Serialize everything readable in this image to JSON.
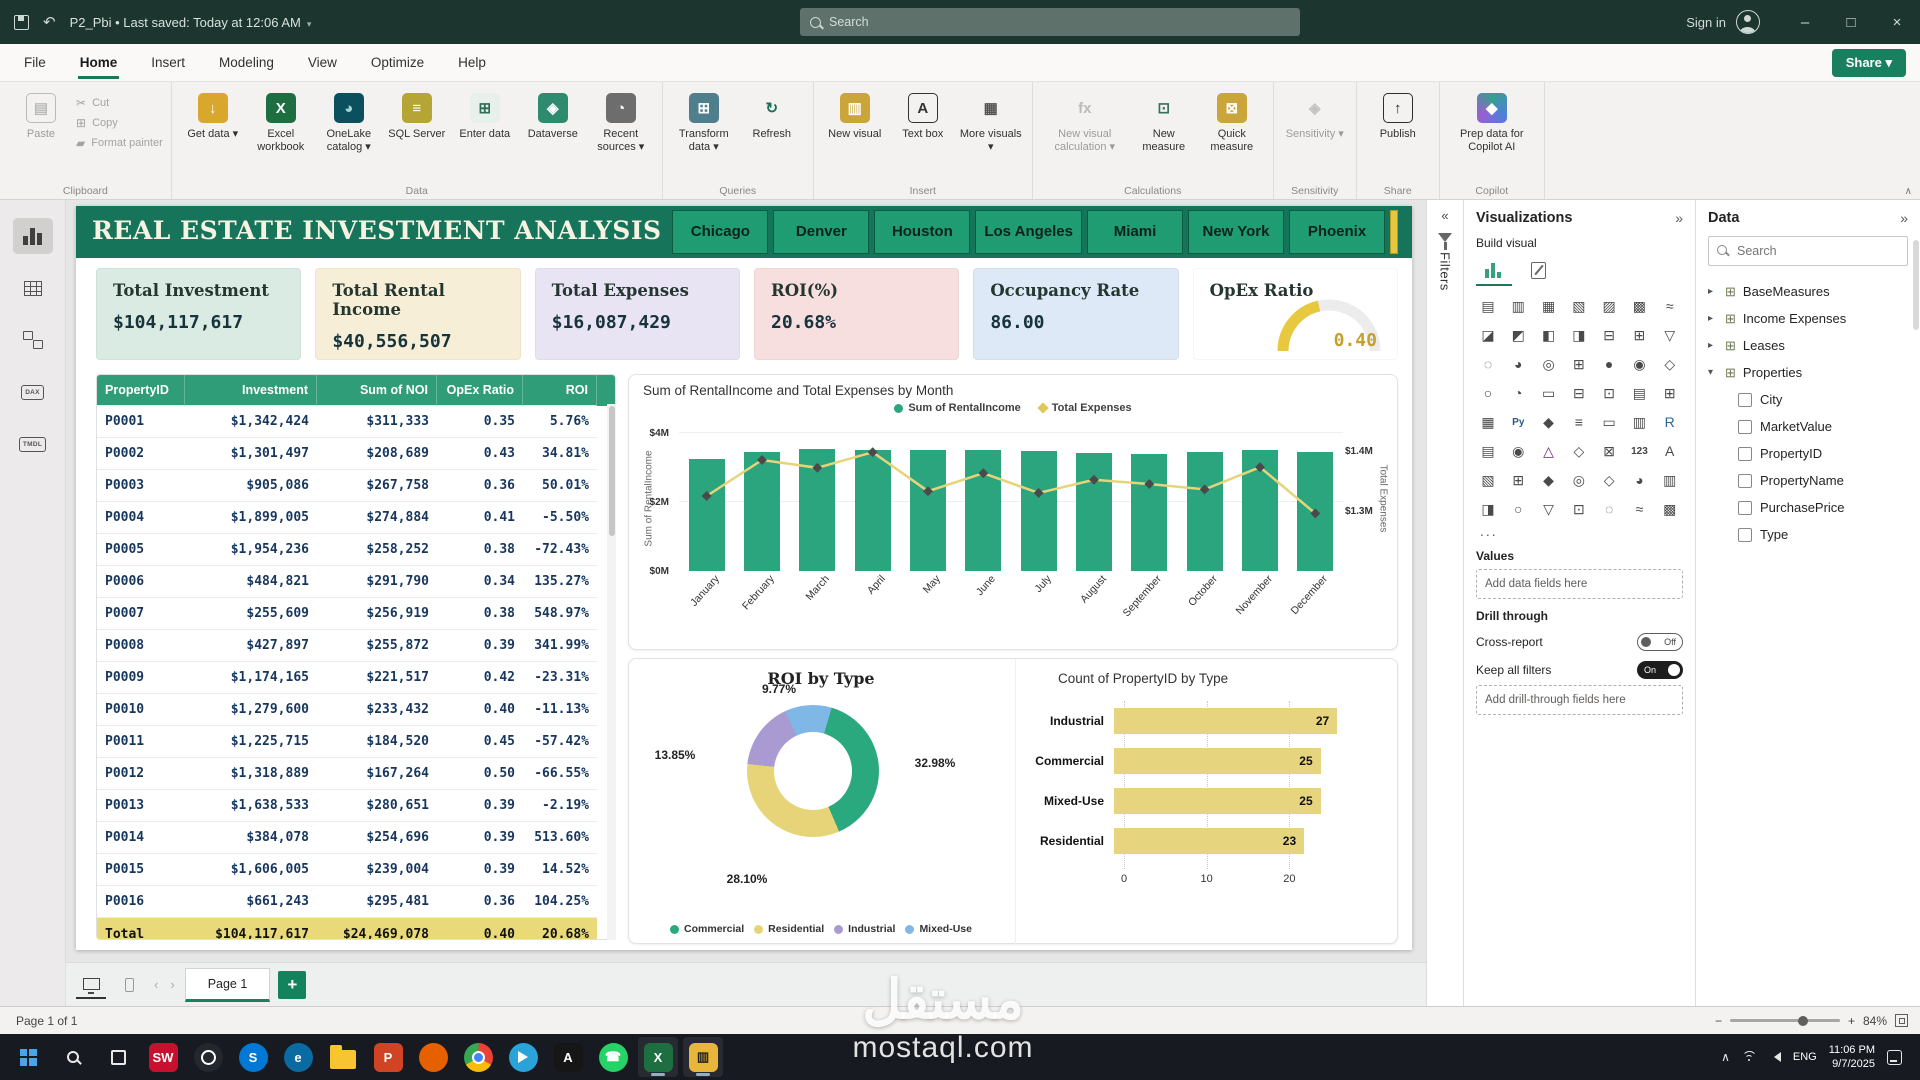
{
  "window": {
    "title": "P2_Pbi • Last saved: Today at 12:06 AM",
    "search_placeholder": "Search",
    "sign_in_label": "Sign in"
  },
  "menubar": {
    "tabs": [
      "File",
      "Home",
      "Insert",
      "Modeling",
      "View",
      "Optimize",
      "Help"
    ],
    "active_tab": "Home",
    "share_label": "Share"
  },
  "ribbon": {
    "clipboard": {
      "label": "Clipboard",
      "paste": "Paste",
      "cut": "Cut",
      "copy": "Copy",
      "format_painter": "Format painter"
    },
    "groups": [
      {
        "label": "Data",
        "items": [
          {
            "name": "get-data",
            "label": "Get data",
            "glyph": "↓",
            "bg": "#d9a62e",
            "fg": "#ffffff",
            "dd": true
          },
          {
            "name": "excel-workbook",
            "label": "Excel workbook",
            "glyph": "X",
            "bg": "#1d6f42",
            "fg": "#ffffff"
          },
          {
            "name": "onelake-catalog",
            "label": "OneLake catalog",
            "glyph": "◕",
            "bg": "#0c4f5e",
            "fg": "#9fd8cf",
            "dd": true
          },
          {
            "name": "sql-server",
            "label": "SQL Server",
            "glyph": "≡",
            "bg": "#b5a535",
            "fg": "#ffffff"
          },
          {
            "name": "enter-data",
            "label": "Enter data",
            "glyph": "⊞",
            "bg": "#e8f0ec",
            "fg": "#2e6e52"
          },
          {
            "name": "dataverse",
            "label": "Dataverse",
            "glyph": "◈",
            "bg": "#2e8b6e",
            "fg": "#ffffff"
          },
          {
            "name": "recent-sources",
            "label": "Recent sources",
            "glyph": "◔",
            "bg": "#6d6d6d",
            "fg": "#ffffff",
            "dd": true
          }
        ]
      },
      {
        "label": "Queries",
        "items": [
          {
            "name": "transform-data",
            "label": "Transform data",
            "glyph": "⊞",
            "bg": "#4f7f8c",
            "fg": "#ffffff",
            "dd": true
          },
          {
            "name": "refresh",
            "label": "Refresh",
            "glyph": "↻",
            "fg": "#1b6e58"
          }
        ]
      },
      {
        "label": "Insert",
        "items": [
          {
            "name": "new-visual",
            "label": "New visual",
            "glyph": "▥",
            "bg": "#c9a53a",
            "fg": "#ffffff"
          },
          {
            "name": "text-box",
            "label": "Text box",
            "glyph": "A",
            "fg": "#333333",
            "boxed": true
          },
          {
            "name": "more-visuals",
            "label": "More visuals",
            "glyph": "▦",
            "fg": "#555555",
            "dd": true
          }
        ]
      },
      {
        "label": "Calculations",
        "items": [
          {
            "name": "new-visual-calculation",
            "label": "New visual calculation",
            "glyph": "fx",
            "fg": "#777777",
            "dd": true,
            "disabled": true,
            "wide": true
          },
          {
            "name": "new-measure",
            "label": "New measure",
            "glyph": "⊡",
            "fg": "#3a6e5e"
          },
          {
            "name": "quick-measure",
            "label": "Quick measure",
            "glyph": "⊠",
            "bg": "#c9a53a",
            "fg": "#ffffff"
          }
        ]
      },
      {
        "label": "Sensitivity",
        "items": [
          {
            "name": "sensitivity",
            "label": "Sensitivity",
            "glyph": "◈",
            "fg": "#888888",
            "dd": true,
            "disabled": true
          }
        ]
      },
      {
        "label": "Share",
        "items": [
          {
            "name": "publish",
            "label": "Publish",
            "glyph": "↑",
            "fg": "#2e2e2e",
            "boxed": true
          }
        ]
      },
      {
        "label": "Copilot",
        "items": [
          {
            "name": "prep-data-for-copilot-ai",
            "label": "Prep data for Copilot AI",
            "glyph": "◆",
            "copilot": true,
            "wide": true
          }
        ]
      }
    ]
  },
  "left_nav": {
    "items": [
      "report-view",
      "table-view",
      "model-view",
      "dax-query-view",
      "tmdl-view"
    ]
  },
  "report": {
    "title": "REAL ESTATE INVESTMENT ANALYSIS",
    "city_buttons": [
      "Chicago",
      "Denver",
      "Houston",
      "Los Angeles",
      "Miami",
      "New York",
      "Phoenix"
    ],
    "kpis": [
      {
        "label": "Total Investment",
        "value": "$104,117,617",
        "bg": "#d9ebe2"
      },
      {
        "label": "Total Rental Income",
        "value": "$40,556,507",
        "bg": "#f6eed6"
      },
      {
        "label": "Total Expenses",
        "value": "$16,087,429",
        "bg": "#e9e4f4"
      },
      {
        "label": "ROI(%)",
        "value": "20.68%",
        "bg": "#f7dfdf"
      },
      {
        "label": "Occupancy Rate",
        "value": "86.00",
        "bg": "#dde9f6"
      },
      {
        "label": "OpEx Ratio",
        "value": "0.40",
        "bg": "#ffffff",
        "type": "gauge"
      }
    ],
    "table": {
      "columns": [
        "PropertyID",
        "Investment",
        "Sum of NOI",
        "OpEx Ratio",
        "ROI"
      ],
      "rows": [
        [
          "P0001",
          "$1,342,424",
          "$311,333",
          "0.35",
          "5.76%"
        ],
        [
          "P0002",
          "$1,301,497",
          "$208,689",
          "0.43",
          "34.81%"
        ],
        [
          "P0003",
          "$905,086",
          "$267,758",
          "0.36",
          "50.01%"
        ],
        [
          "P0004",
          "$1,899,005",
          "$274,884",
          "0.41",
          "-5.50%"
        ],
        [
          "P0005",
          "$1,954,236",
          "$258,252",
          "0.38",
          "-72.43%"
        ],
        [
          "P0006",
          "$484,821",
          "$291,790",
          "0.34",
          "135.27%"
        ],
        [
          "P0007",
          "$255,609",
          "$256,919",
          "0.38",
          "548.97%"
        ],
        [
          "P0008",
          "$427,897",
          "$255,872",
          "0.39",
          "341.99%"
        ],
        [
          "P0009",
          "$1,174,165",
          "$221,517",
          "0.42",
          "-23.31%"
        ],
        [
          "P0010",
          "$1,279,600",
          "$233,432",
          "0.40",
          "-11.13%"
        ],
        [
          "P0011",
          "$1,225,715",
          "$184,520",
          "0.45",
          "-57.42%"
        ],
        [
          "P0012",
          "$1,318,889",
          "$167,264",
          "0.50",
          "-66.55%"
        ],
        [
          "P0013",
          "$1,638,533",
          "$280,651",
          "0.39",
          "-2.19%"
        ],
        [
          "P0014",
          "$384,078",
          "$254,696",
          "0.39",
          "513.60%"
        ],
        [
          "P0015",
          "$1,606,005",
          "$239,004",
          "0.39",
          "14.52%"
        ],
        [
          "P0016",
          "$661,243",
          "$295,481",
          "0.36",
          "104.25%"
        ]
      ],
      "total": [
        "Total",
        "$104,117,617",
        "$24,469,078",
        "0.40",
        "20.68%"
      ]
    }
  },
  "chart_data": [
    {
      "type": "bar",
      "title": "Sum of RentalIncome and Total Expenses by Month",
      "categories": [
        "January",
        "February",
        "March",
        "April",
        "May",
        "June",
        "July",
        "August",
        "September",
        "October",
        "November",
        "December"
      ],
      "series": [
        {
          "name": "Sum of RentalIncome",
          "type": "column",
          "axis": "left",
          "color": "#2aa57e",
          "values": [
            3.25,
            3.45,
            3.55,
            3.5,
            3.5,
            3.52,
            3.48,
            3.42,
            3.38,
            3.45,
            3.52,
            3.45
          ]
        },
        {
          "name": "Total Expenses",
          "type": "line",
          "axis": "right",
          "color": "#e7d47a",
          "values": [
            1.325,
            1.385,
            1.372,
            1.398,
            1.333,
            1.363,
            1.33,
            1.352,
            1.345,
            1.336,
            1.373,
            1.296
          ]
        }
      ],
      "left_axis": {
        "title": "Sum of RentalIncome",
        "ticks": [
          "$0M",
          "$2M",
          "$4M"
        ],
        "tick_values": [
          0,
          2,
          4
        ],
        "min": 0,
        "max": 4
      },
      "right_axis": {
        "title": "Total Expenses",
        "ticks": [
          "$1.3M",
          "$1.4M"
        ],
        "tick_values": [
          1.3,
          1.4
        ],
        "min": 1.2,
        "max": 1.43
      },
      "legend_position": "top"
    },
    {
      "type": "pie",
      "title": "ROI by Type",
      "start_angle": -25,
      "slices": [
        {
          "label": "Mixed-Use",
          "pct": "9.77%",
          "value": 9.77,
          "color": "#7fb8e6",
          "label_pos": [
            150,
            30
          ]
        },
        {
          "label": "Commercial",
          "pct": "32.98%",
          "value": 32.98,
          "color": "#2aa87e",
          "label_pos": [
            306,
            104
          ]
        },
        {
          "label": "Residential",
          "pct": "28.10%",
          "value": 28.1,
          "color": "#e8d478",
          "label_pos": [
            118,
            220
          ]
        },
        {
          "label": "Industrial",
          "pct": "13.85%",
          "value": 13.85,
          "color": "#a99bd1",
          "label_pos": [
            46,
            96
          ]
        }
      ],
      "legend": [
        "Commercial",
        "Residential",
        "Industrial",
        "Mixed-Use"
      ],
      "legend_colors": [
        "#2aa87e",
        "#e8d478",
        "#a99bd1",
        "#7fb8e6"
      ]
    },
    {
      "type": "bar",
      "orientation": "horizontal",
      "title": "Count of PropertyID by Type",
      "categories": [
        "Industrial",
        "Commercial",
        "Mixed-Use",
        "Residential"
      ],
      "values": [
        27,
        25,
        25,
        23
      ],
      "x_ticks": [
        0,
        10,
        20
      ],
      "xlim": [
        0,
        30
      ],
      "color": "#e6d47e"
    }
  ],
  "filters_panel": {
    "label": "Filters"
  },
  "viz_panel": {
    "title": "Visualizations",
    "build_visual": "Build visual",
    "values_label": "Values",
    "values_hint": "Add data fields here",
    "drill_label": "Drill through",
    "cross_report": "Cross-report",
    "cross_state": "Off",
    "keep_filters": "Keep all filters",
    "keep_state": "On",
    "drill_hint": "Add drill-through fields here",
    "more": "...",
    "icons": [
      {
        "n": "stacked-bar-chart",
        "g": "▤"
      },
      {
        "n": "stacked-column-chart",
        "g": "▥"
      },
      {
        "n": "clustered-bar-chart",
        "g": "▦"
      },
      {
        "n": "clustered-column-chart",
        "g": "▧"
      },
      {
        "n": "100-stacked-bar-chart",
        "g": "▨"
      },
      {
        "n": "100-stacked-column-chart",
        "g": "▩"
      },
      {
        "n": "line-chart",
        "g": "≈"
      },
      {
        "n": "area-chart",
        "g": "◪"
      },
      {
        "n": "stacked-area-chart",
        "g": "◩"
      },
      {
        "n": "line-and-stacked-column-chart",
        "g": "◧"
      },
      {
        "n": "line-and-clustered-column-chart",
        "g": "◨"
      },
      {
        "n": "ribbon-chart",
        "g": "⊟"
      },
      {
        "n": "waterfall-chart",
        "g": "⊞"
      },
      {
        "n": "funnel-chart",
        "g": "▽"
      },
      {
        "n": "scatter-chart",
        "g": "◌"
      },
      {
        "n": "pie-chart",
        "g": "◕"
      },
      {
        "n": "donut-chart",
        "g": "◎"
      },
      {
        "n": "treemap",
        "g": "⊞"
      },
      {
        "n": "map",
        "g": "●"
      },
      {
        "n": "filled-map",
        "g": "◉"
      },
      {
        "n": "shape-map",
        "g": "◇"
      },
      {
        "n": "azure-map",
        "g": "○"
      },
      {
        "n": "gauge",
        "g": "◔"
      },
      {
        "n": "card",
        "g": "▭"
      },
      {
        "n": "multi-row-card",
        "g": "⊟"
      },
      {
        "n": "kpi",
        "g": "⊡"
      },
      {
        "n": "slicer",
        "g": "▤"
      },
      {
        "n": "table",
        "g": "⊞"
      },
      {
        "n": "matrix",
        "g": "▦"
      },
      {
        "n": "python-visual",
        "g": "Py",
        "c": "#2b5b84"
      },
      {
        "n": "key-influencers",
        "g": "◆"
      },
      {
        "n": "decomposition-tree",
        "g": "≡"
      },
      {
        "n": "qa-visual",
        "g": "▭"
      },
      {
        "n": "smart-narrative",
        "g": "▥"
      },
      {
        "n": "r-script-visual",
        "g": "R",
        "c": "#2b6699"
      },
      {
        "n": "paginated-report",
        "g": "▤"
      },
      {
        "n": "arcgis-map",
        "g": "◉"
      },
      {
        "n": "power-apps",
        "g": "△",
        "c": "#742774"
      },
      {
        "n": "power-automate",
        "g": "◇"
      },
      {
        "n": "scorecard",
        "g": "⊠"
      },
      {
        "n": "numeric-range-slicer",
        "g": "123",
        "c": "#444444"
      },
      {
        "n": "text-slicer",
        "g": "A"
      },
      {
        "n": "custom-visual-chart",
        "g": "▧"
      },
      {
        "n": "custom-visual-calendar",
        "g": "⊞"
      },
      {
        "n": "custom-visual-kpi",
        "g": "◆"
      },
      {
        "n": "custom-visual-map",
        "g": "◎"
      },
      {
        "n": "custom-visual-flow",
        "g": "◇"
      },
      {
        "n": "custom-visual-gauge",
        "g": "◕"
      },
      {
        "n": "custom-visual-bar",
        "g": "▥"
      },
      {
        "n": "custom-visual-area",
        "g": "◨"
      },
      {
        "n": "custom-visual-donut",
        "g": "○"
      },
      {
        "n": "custom-visual-funnel",
        "g": "▽"
      },
      {
        "n": "custom-visual-table",
        "g": "⊡"
      },
      {
        "n": "custom-visual-scatter",
        "g": "◌"
      },
      {
        "n": "custom-visual-line",
        "g": "≈"
      },
      {
        "n": "custom-visual-matrix",
        "g": "▩"
      }
    ]
  },
  "data_panel": {
    "title": "Data",
    "search_placeholder": "Search",
    "tables": [
      {
        "name": "BaseMeasures",
        "expanded": false
      },
      {
        "name": "Income Expenses",
        "expanded": false
      },
      {
        "name": "Leases",
        "expanded": false
      },
      {
        "name": "Properties",
        "expanded": true,
        "fields": [
          "City",
          "MarketValue",
          "PropertyID",
          "PropertyName",
          "PurchasePrice",
          "Type"
        ]
      }
    ]
  },
  "pages_bar": {
    "page_tab": "Page 1"
  },
  "status_bar": {
    "page_info": "Page 1 of 1",
    "zoom": "84%"
  },
  "taskbar": {
    "apps": [
      {
        "name": "solidworks",
        "label": "SW",
        "color": "#c8102e"
      },
      {
        "name": "obs-studio",
        "label": "",
        "color": "#23272e",
        "shape": "obs"
      },
      {
        "name": "skype",
        "label": "S",
        "color": "#0078d4",
        "circle": true
      },
      {
        "name": "edge-browser",
        "label": "e",
        "color": "#0b6aa2",
        "circle": true
      },
      {
        "name": "file-explorer",
        "label": "",
        "shape": "folder"
      },
      {
        "name": "powerpoint",
        "label": "P",
        "color": "#d04423"
      },
      {
        "name": "firefox-browser",
        "label": "",
        "color": "#e66000",
        "circle": true
      },
      {
        "name": "chrome-browser",
        "label": "",
        "shape": "chrome"
      },
      {
        "name": "telegram",
        "label": "",
        "color": "#2aa3d8",
        "circle": true,
        "shape": "tri"
      },
      {
        "name": "affinity-app",
        "label": "A",
        "color": "#161616"
      },
      {
        "name": "whatsapp",
        "label": "☎",
        "color": "#25d366",
        "circle": true
      },
      {
        "name": "excel",
        "label": "X",
        "color": "#1d6f42",
        "open": true
      },
      {
        "name": "power-bi-file",
        "label": "▥",
        "color": "#e8b63a",
        "open": true,
        "dark_glyph": true
      }
    ],
    "tray": {
      "lang": "ENG",
      "time": "11:06 PM",
      "date": "9/7/2025"
    }
  },
  "watermark": {
    "line1": "مستقل",
    "line2": "mostaql.com"
  }
}
